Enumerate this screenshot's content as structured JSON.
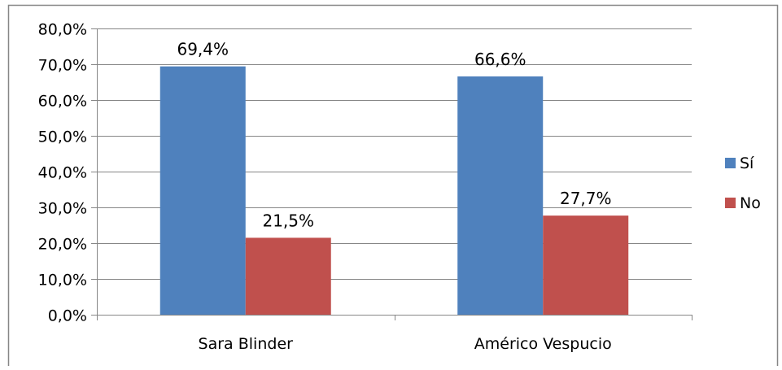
{
  "chart_data": {
    "type": "bar",
    "title": "",
    "xlabel": "",
    "ylabel": "",
    "categories": [
      "Sara Blinder",
      "Américo Vespucio"
    ],
    "series": [
      {
        "name": "Sí",
        "values": [
          69.4,
          66.6
        ],
        "labels": [
          "69,4%",
          "66,6%"
        ],
        "color": "#4F81BD"
      },
      {
        "name": "No",
        "values": [
          21.5,
          27.7
        ],
        "labels": [
          "21,5%",
          "27,7%"
        ],
        "color": "#C0504D"
      }
    ],
    "ylim": [
      0,
      80
    ],
    "yticks": [
      0,
      10,
      20,
      30,
      40,
      50,
      60,
      70,
      80
    ],
    "ytick_labels": [
      "0,0%",
      "10,0%",
      "20,0%",
      "30,0%",
      "40,0%",
      "50,0%",
      "60,0%",
      "70,0%",
      "80,0%"
    ],
    "grid": true,
    "legend_position": "right",
    "colors": {
      "gridline": "#868686",
      "axis": "#868686",
      "frame": "#868686"
    }
  }
}
